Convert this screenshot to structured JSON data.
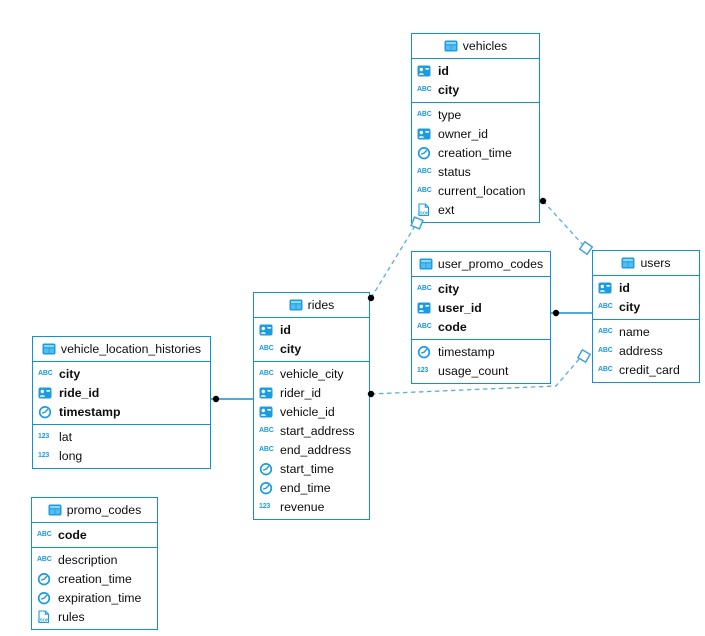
{
  "diagram": {
    "colors": {
      "accent": "#1191d6",
      "icon_blue": "#1b9be0",
      "dash_line": "#58acdf",
      "marker_dot": "#000000",
      "text": "#0d0d0d",
      "background": "#ffffff"
    },
    "icon_glyphs": {
      "text": "ABC",
      "number": "123",
      "json": "JSON"
    },
    "tables": [
      {
        "title": "vehicles",
        "key_fields": [
          {
            "name": "id",
            "type": "id"
          },
          {
            "name": "city",
            "type": "text"
          }
        ],
        "fields": [
          {
            "name": "type",
            "type": "text"
          },
          {
            "name": "owner_id",
            "type": "id"
          },
          {
            "name": "creation_time",
            "type": "time"
          },
          {
            "name": "status",
            "type": "text"
          },
          {
            "name": "current_location",
            "type": "text"
          },
          {
            "name": "ext",
            "type": "json"
          }
        ]
      },
      {
        "title": "user_promo_codes",
        "key_fields": [
          {
            "name": "city",
            "type": "text"
          },
          {
            "name": "user_id",
            "type": "id"
          },
          {
            "name": "code",
            "type": "text"
          }
        ],
        "fields": [
          {
            "name": "timestamp",
            "type": "time"
          },
          {
            "name": "usage_count",
            "type": "number"
          }
        ]
      },
      {
        "title": "users",
        "key_fields": [
          {
            "name": "id",
            "type": "id"
          },
          {
            "name": "city",
            "type": "text"
          }
        ],
        "fields": [
          {
            "name": "name",
            "type": "text"
          },
          {
            "name": "address",
            "type": "text"
          },
          {
            "name": "credit_card",
            "type": "text"
          }
        ]
      },
      {
        "title": "rides",
        "key_fields": [
          {
            "name": "id",
            "type": "id"
          },
          {
            "name": "city",
            "type": "text"
          }
        ],
        "fields": [
          {
            "name": "vehicle_city",
            "type": "text"
          },
          {
            "name": "rider_id",
            "type": "id"
          },
          {
            "name": "vehicle_id",
            "type": "id"
          },
          {
            "name": "start_address",
            "type": "text"
          },
          {
            "name": "end_address",
            "type": "text"
          },
          {
            "name": "start_time",
            "type": "time"
          },
          {
            "name": "end_time",
            "type": "time"
          },
          {
            "name": "revenue",
            "type": "number"
          }
        ]
      },
      {
        "title": "vehicle_location_histories",
        "key_fields": [
          {
            "name": "city",
            "type": "text"
          },
          {
            "name": "ride_id",
            "type": "id"
          },
          {
            "name": "timestamp",
            "type": "time"
          }
        ],
        "fields": [
          {
            "name": "lat",
            "type": "number"
          },
          {
            "name": "long",
            "type": "number"
          }
        ]
      },
      {
        "title": "promo_codes",
        "key_fields": [
          {
            "name": "code",
            "type": "text"
          }
        ],
        "fields": [
          {
            "name": "description",
            "type": "text"
          },
          {
            "name": "creation_time",
            "type": "time"
          },
          {
            "name": "expiration_time",
            "type": "time"
          },
          {
            "name": "rules",
            "type": "json"
          }
        ]
      }
    ],
    "relations": [
      {
        "from": "rides",
        "to": "vehicles",
        "line": "dashed"
      },
      {
        "from": "vehicles",
        "to": "users",
        "line": "dashed"
      },
      {
        "from": "rides",
        "to": "users",
        "line": "dashed"
      },
      {
        "from": "user_promo_codes",
        "to": "users",
        "line": "solid"
      },
      {
        "from": "vehicle_location_histories",
        "to": "rides",
        "line": "solid"
      }
    ]
  }
}
